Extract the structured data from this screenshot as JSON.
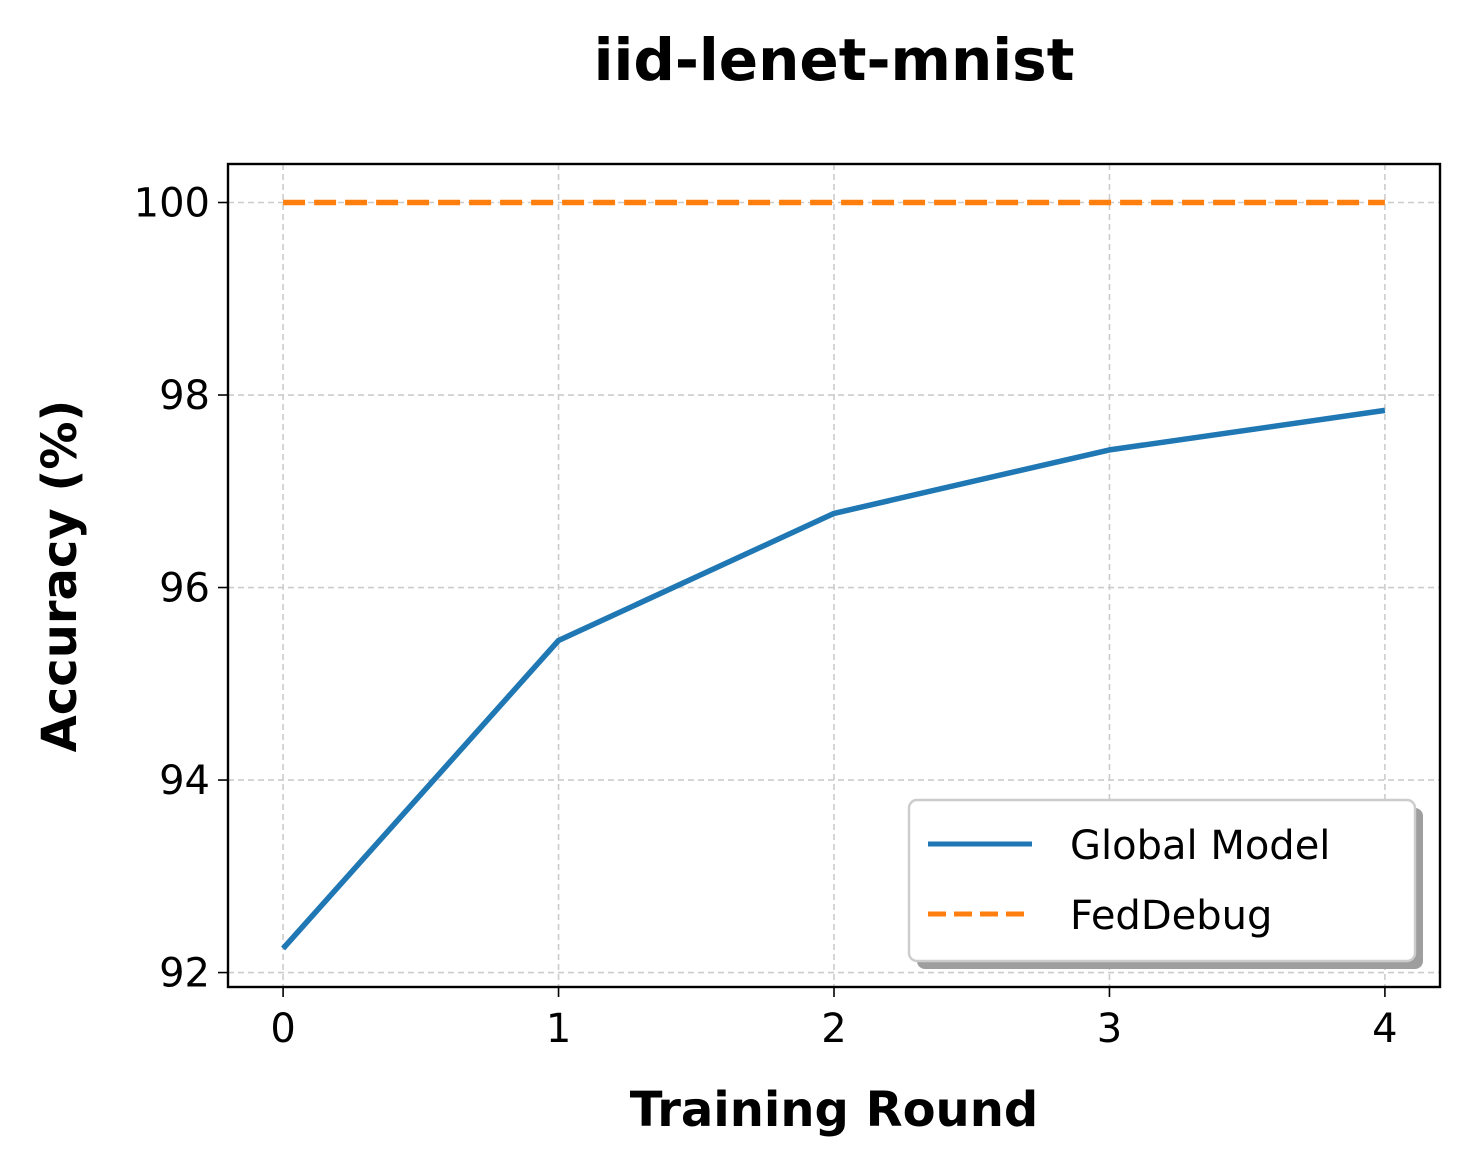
{
  "chart_data": {
    "type": "line",
    "title": "iid-lenet-mnist",
    "xlabel": "Training Round",
    "ylabel": "Accuracy (%)",
    "xlim": [
      -0.2,
      4.2
    ],
    "ylim": [
      91.85,
      100.4
    ],
    "xticks": [
      0,
      1,
      2,
      3,
      4
    ],
    "yticks": [
      92,
      94,
      96,
      98,
      100
    ],
    "x": [
      0,
      1,
      2,
      3,
      4
    ],
    "grid": true,
    "legend_position": "lower-right",
    "series": [
      {
        "name": "Global Model",
        "values": [
          92.25,
          95.45,
          96.77,
          97.43,
          97.84
        ],
        "color": "#1f77b4",
        "style": "solid"
      },
      {
        "name": "FedDebug",
        "values": [
          100,
          100,
          100,
          100,
          100
        ],
        "color": "#ff7f0e",
        "style": "dashed"
      }
    ]
  }
}
